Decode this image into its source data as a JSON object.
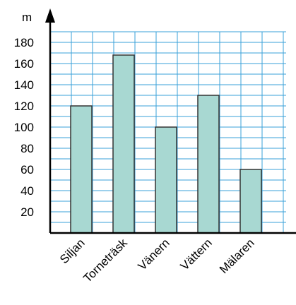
{
  "chart_data": {
    "type": "bar",
    "categories": [
      "Siljan",
      "Torneträsk",
      "Vänern",
      "Vättern",
      "Mälaren"
    ],
    "values": [
      120,
      168,
      100,
      130,
      60
    ],
    "title": "",
    "xlabel": "",
    "ylabel": "m",
    "ylim": [
      0,
      180
    ],
    "yticks": [
      20,
      40,
      60,
      80,
      100,
      120,
      140,
      160,
      180
    ],
    "grid": true,
    "colors": {
      "bar": "#a8d8d2",
      "bar_stroke": "#333333",
      "grid": "#3aa0d8",
      "axis": "#000000"
    }
  }
}
